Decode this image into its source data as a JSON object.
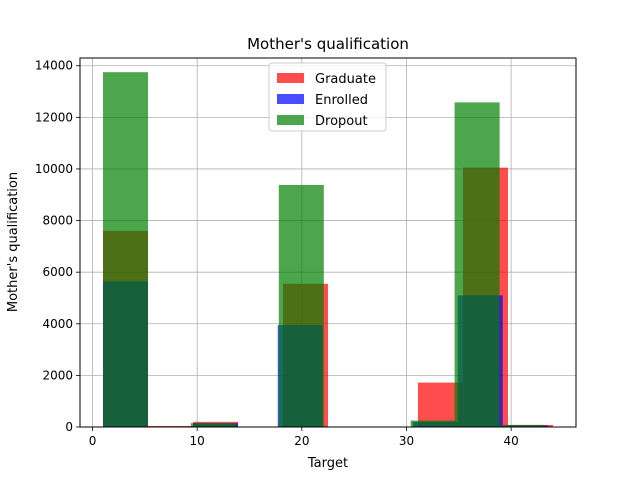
{
  "chart_data": {
    "type": "bar",
    "title": "Mother's qualification",
    "xlabel": "Target",
    "ylabel": "Mother's qualification",
    "xlim": [
      -1.2,
      46.2
    ],
    "ylim": [
      0,
      14300
    ],
    "xticks": [
      0,
      10,
      20,
      30,
      40
    ],
    "yticks": [
      0,
      2000,
      4000,
      6000,
      8000,
      10000,
      12000,
      14000
    ],
    "grid": true,
    "legend_position": "top-center",
    "bin_width": 4.3,
    "series": [
      {
        "name": "Graduate",
        "color": "#ff0000",
        "bins": [
          {
            "x": 1,
            "value": 7600
          },
          {
            "x": 5.3,
            "value": 40
          },
          {
            "x": 9.6,
            "value": 200
          },
          {
            "x": 13.9,
            "value": 0
          },
          {
            "x": 18.2,
            "value": 5550
          },
          {
            "x": 22.5,
            "value": 0
          },
          {
            "x": 26.8,
            "value": 0
          },
          {
            "x": 31.1,
            "value": 1720
          },
          {
            "x": 35.4,
            "value": 10050
          },
          {
            "x": 39.7,
            "value": 80
          }
        ]
      },
      {
        "name": "Enrolled",
        "color": "#0000ff",
        "bins": [
          {
            "x": 1,
            "value": 5650
          },
          {
            "x": 5.3,
            "value": 20
          },
          {
            "x": 9.6,
            "value": 150
          },
          {
            "x": 13.9,
            "value": 0
          },
          {
            "x": 17.7,
            "value": 3950
          },
          {
            "x": 22.0,
            "value": 0
          },
          {
            "x": 26.3,
            "value": 0
          },
          {
            "x": 30.6,
            "value": 200
          },
          {
            "x": 34.9,
            "value": 5100
          },
          {
            "x": 39.2,
            "value": 60
          }
        ]
      },
      {
        "name": "Dropout",
        "color": "#008000",
        "bins": [
          {
            "x": 1,
            "value": 13750
          },
          {
            "x": 5.2,
            "value": 20
          },
          {
            "x": 9.4,
            "value": 150
          },
          {
            "x": 13.6,
            "value": 0
          },
          {
            "x": 17.8,
            "value": 9380
          },
          {
            "x": 22.0,
            "value": 0
          },
          {
            "x": 26.2,
            "value": 0
          },
          {
            "x": 30.4,
            "value": 250
          },
          {
            "x": 34.6,
            "value": 12580
          },
          {
            "x": 38.8,
            "value": 80
          }
        ]
      }
    ]
  }
}
